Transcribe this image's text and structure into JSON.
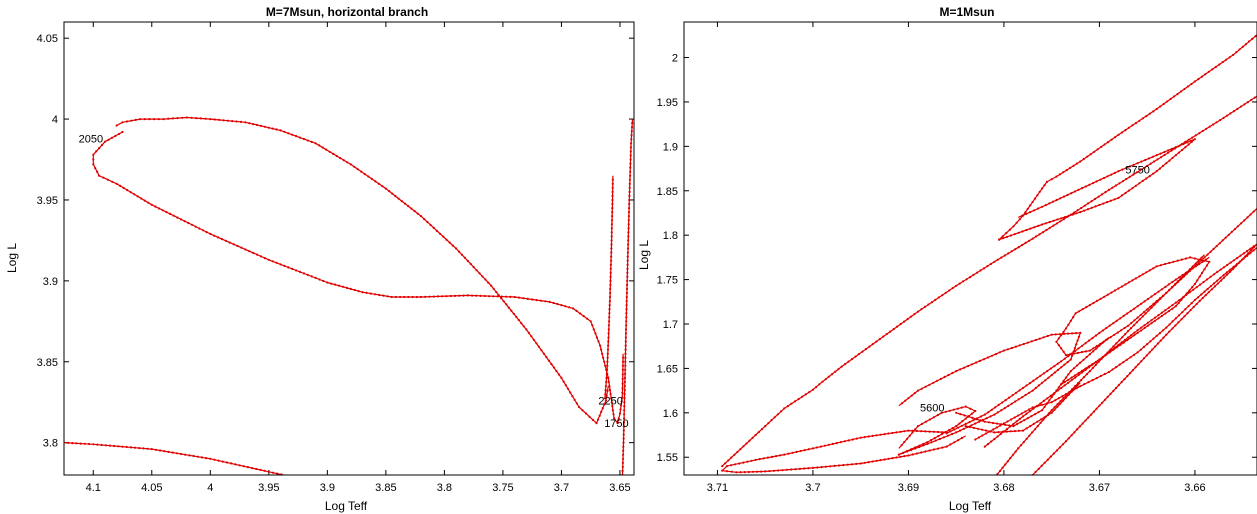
{
  "chart_data": [
    {
      "type": "line",
      "title": "M=7Msun, horizontal branch",
      "xlabel": "Log Teff",
      "ylabel": "Log L",
      "xlim": [
        4.125,
        3.638
      ],
      "ylim": [
        3.78,
        4.06
      ],
      "x_reversed": true,
      "xticks": [
        "4.1",
        "4.05",
        "4",
        "3.95",
        "3.9",
        "3.85",
        "3.8",
        "3.75",
        "3.7",
        "3.65"
      ],
      "xtick_values": [
        4.1,
        4.05,
        4.0,
        3.95,
        3.9,
        3.85,
        3.8,
        3.75,
        3.7,
        3.65
      ],
      "yticks": [
        "3.8",
        "3.85",
        "3.9",
        "3.95",
        "4",
        "4.05"
      ],
      "ytick_values": [
        3.8,
        3.85,
        3.9,
        3.95,
        4.0,
        4.05
      ],
      "grid": false,
      "color": "#e00000",
      "series": [
        {
          "x": [
            4.08,
            4.075,
            4.06,
            4.04,
            4.02,
            4.0,
            3.97,
            3.94,
            3.91,
            3.88,
            3.85,
            3.82,
            3.79,
            3.76,
            3.73,
            3.7,
            3.685,
            3.67,
            3.662,
            3.66
          ],
          "y": [
            3.996,
            3.998,
            4.0,
            4.0,
            4.001,
            4.0,
            3.998,
            3.993,
            3.985,
            3.972,
            3.957,
            3.94,
            3.92,
            3.897,
            3.87,
            3.84,
            3.822,
            3.812,
            3.826,
            3.835
          ]
        },
        {
          "x": [
            4.075,
            4.09,
            4.1,
            4.1,
            4.095,
            4.08,
            4.05,
            4.0,
            3.95,
            3.9,
            3.87,
            3.845,
            3.82,
            3.78,
            3.74,
            3.71,
            3.69,
            3.675,
            3.667,
            3.66
          ],
          "y": [
            3.992,
            3.986,
            3.978,
            3.972,
            3.965,
            3.96,
            3.947,
            3.929,
            3.913,
            3.899,
            3.893,
            3.89,
            3.89,
            3.891,
            3.89,
            3.887,
            3.883,
            3.875,
            3.86,
            3.84
          ]
        },
        {
          "x": [
            3.6628,
            3.661,
            3.6598,
            3.6585,
            3.6573,
            3.6564,
            3.656
          ],
          "y": [
            3.8275,
            3.845,
            3.865,
            3.89,
            3.92,
            3.95,
            3.965
          ]
        },
        {
          "x": [
            3.66,
            3.655,
            3.652,
            3.65,
            3.648,
            3.6475,
            3.6473
          ],
          "y": [
            3.84,
            3.815,
            3.812,
            3.818,
            3.828,
            3.845,
            3.855
          ]
        },
        {
          "x": [
            3.6478,
            3.647,
            3.646,
            3.6448,
            3.6435,
            3.642,
            3.6405,
            3.6393
          ],
          "y": [
            3.78,
            3.8,
            3.83,
            3.87,
            3.91,
            3.95,
            3.985,
            4.0
          ]
        },
        {
          "x": [
            4.125,
            4.1,
            4.05,
            4.0,
            3.95,
            3.925
          ],
          "y": [
            3.8,
            3.799,
            3.796,
            3.79,
            3.782,
            3.778
          ]
        }
      ],
      "annotations": [
        {
          "text": "2050",
          "x": 4.102,
          "y": 3.988
        },
        {
          "text": "2250",
          "x": 3.658,
          "y": 3.826
        },
        {
          "text": "1750",
          "x": 3.653,
          "y": 3.812
        }
      ]
    },
    {
      "type": "line",
      "title": "M=1Msun",
      "xlabel": "Log Teff",
      "ylabel": "Log L",
      "xlim": [
        3.7135,
        3.6535
      ],
      "ylim": [
        1.53,
        2.04
      ],
      "x_reversed": true,
      "xticks": [
        "3.71",
        "3.7",
        "3.69",
        "3.68",
        "3.67",
        "3.66"
      ],
      "xtick_values": [
        3.71,
        3.7,
        3.69,
        3.68,
        3.67,
        3.66
      ],
      "yticks": [
        "1.55",
        "1.6",
        "1.65",
        "1.7",
        "1.75",
        "1.8",
        "1.85",
        "1.9",
        "1.95",
        "2"
      ],
      "ytick_values": [
        1.55,
        1.6,
        1.65,
        1.7,
        1.75,
        1.8,
        1.85,
        1.9,
        1.95,
        2.0
      ],
      "grid": false,
      "color": "#e00000",
      "series": [
        {
          "x": [
            3.686,
            3.69,
            3.695,
            3.7,
            3.703,
            3.706,
            3.709,
            3.7095,
            3.708,
            3.705,
            3.7,
            3.695,
            3.69,
            3.686,
            3.684
          ],
          "y": [
            1.578,
            1.58,
            1.572,
            1.56,
            1.553,
            1.547,
            1.54,
            1.535,
            1.533,
            1.534,
            1.538,
            1.543,
            1.552,
            1.562,
            1.574
          ]
        },
        {
          "x": [
            3.7095,
            3.706,
            3.703,
            3.7,
            3.699,
            3.697,
            3.693,
            3.689,
            3.685,
            3.681,
            3.677,
            3.673,
            3.669,
            3.665,
            3.661,
            3.657,
            3.653
          ],
          "y": [
            1.54,
            1.575,
            1.605,
            1.626,
            1.635,
            1.652,
            1.683,
            1.714,
            1.743,
            1.77,
            1.796,
            1.823,
            1.851,
            1.878,
            1.905,
            1.932,
            1.96
          ]
        },
        {
          "x": [
            3.6805,
            3.679,
            3.678,
            3.6765,
            3.6755,
            3.6745,
            3.672,
            3.668,
            3.664,
            3.66,
            3.656,
            3.653
          ],
          "y": [
            1.795,
            1.81,
            1.822,
            1.845,
            1.86,
            1.866,
            1.883,
            1.913,
            1.942,
            1.973,
            2.003,
            2.03
          ]
        },
        {
          "x": [
            3.6805,
            3.676,
            3.672,
            3.668,
            3.664,
            3.66,
            3.668,
            3.676,
            3.6785
          ],
          "y": [
            1.795,
            1.812,
            1.826,
            1.842,
            1.872,
            1.908,
            1.872,
            1.832,
            1.82
          ]
        },
        {
          "x": [
            3.691,
            3.688,
            3.685,
            3.681,
            3.677,
            3.673,
            3.672,
            3.675,
            3.68,
            3.685,
            3.689,
            3.691
          ],
          "y": [
            1.553,
            1.565,
            1.578,
            1.598,
            1.625,
            1.66,
            1.69,
            1.688,
            1.67,
            1.647,
            1.625,
            1.608
          ]
        },
        {
          "x": [
            3.691,
            3.688,
            3.685,
            3.683,
            3.684,
            3.6865,
            3.689,
            3.691
          ],
          "y": [
            1.553,
            1.567,
            1.585,
            1.602,
            1.607,
            1.6,
            1.585,
            1.56
          ]
        },
        {
          "x": [
            3.674,
            3.67,
            3.666,
            3.662,
            3.66,
            3.6585,
            3.6605,
            3.664,
            3.668,
            3.6725,
            3.6735
          ],
          "y": [
            1.632,
            1.66,
            1.69,
            1.72,
            1.745,
            1.77,
            1.775,
            1.765,
            1.74,
            1.712,
            1.695
          ]
        },
        {
          "x": [
            3.6735,
            3.6745,
            3.6735,
            3.671,
            3.667,
            3.663,
            3.659
          ],
          "y": [
            1.695,
            1.68,
            1.665,
            1.67,
            1.698,
            1.735,
            1.778
          ]
        },
        {
          "x": [
            3.686,
            3.682,
            3.678,
            3.674,
            3.67,
            3.666,
            3.662,
            3.6585
          ],
          "y": [
            1.577,
            1.598,
            1.628,
            1.658,
            1.69,
            1.72,
            1.75,
            1.775
          ]
        },
        {
          "x": [
            3.684,
            3.681,
            3.678,
            3.675,
            3.672
          ],
          "y": [
            1.585,
            1.578,
            1.58,
            1.6,
            1.634
          ]
        },
        {
          "x": [
            3.685,
            3.682,
            3.679,
            3.676,
            3.673,
            3.669
          ],
          "y": [
            1.6,
            1.59,
            1.585,
            1.603,
            1.647,
            1.685
          ]
        },
        {
          "x": [
            3.683,
            3.68,
            3.677,
            3.675,
            3.672,
            3.669,
            3.666,
            3.663,
            3.66,
            3.657,
            3.6535
          ],
          "y": [
            1.57,
            1.588,
            1.606,
            1.612,
            1.63,
            1.646,
            1.668,
            1.696,
            1.727,
            1.755,
            1.786
          ]
        },
        {
          "x": [
            3.682,
            3.678,
            3.674,
            3.67,
            3.666,
            3.662,
            3.658,
            3.6535
          ],
          "y": [
            1.562,
            1.596,
            1.628,
            1.66,
            1.693,
            1.724,
            1.756,
            1.79
          ]
        },
        {
          "x": [
            3.677,
            3.6735,
            3.67,
            3.6665,
            3.663,
            3.6595,
            3.656,
            3.6535
          ],
          "y": [
            1.53,
            1.568,
            1.608,
            1.648,
            1.688,
            1.726,
            1.762,
            1.79
          ]
        },
        {
          "x": [
            3.6815,
            3.6785,
            3.675,
            3.671,
            3.667,
            3.663,
            3.659,
            3.6555,
            3.6535
          ],
          "y": [
            1.52,
            1.56,
            1.603,
            1.647,
            1.692,
            1.735,
            1.775,
            1.81,
            1.83
          ]
        }
      ],
      "annotations": [
        {
          "text": "5750",
          "x": 3.666,
          "y": 1.874
        },
        {
          "text": "5600",
          "x": 3.6875,
          "y": 1.606
        }
      ]
    }
  ]
}
